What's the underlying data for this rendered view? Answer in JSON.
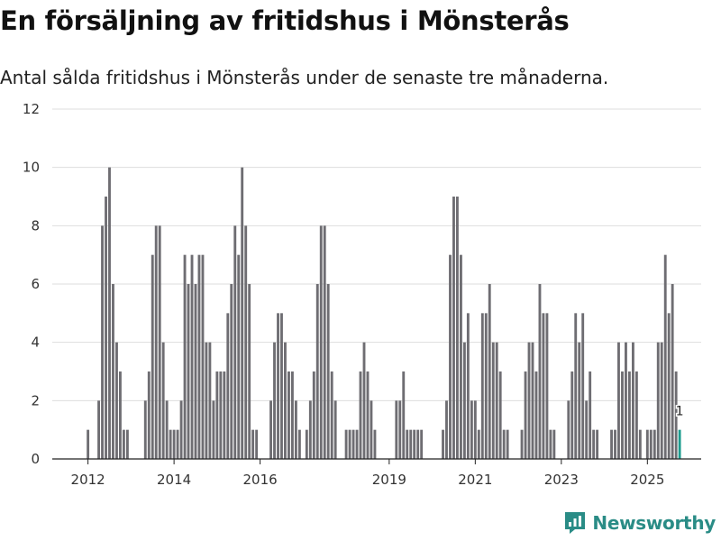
{
  "chart_data": {
    "type": "bar",
    "title": "En försäljning av fritidshus i Mönsterås",
    "subtitle": "Antal sålda fritidshus i Mönsterås under de senaste tre månaderna.",
    "xlabel": "",
    "ylabel": "",
    "ylim": [
      0,
      12
    ],
    "yticks": [
      0,
      2,
      4,
      6,
      8,
      10,
      12
    ],
    "xtick_labels": [
      "2012",
      "2014",
      "2016",
      "2019",
      "2021",
      "2023",
      "2025"
    ],
    "grid": true,
    "x_range": [
      2011.17,
      2026.25
    ],
    "bar_color": "#6e6d72",
    "highlight_color": "#1e9c8f",
    "highlight_label": "1",
    "series": [
      {
        "name": "Antal sålda fritidshus",
        "x": [
          2012.0,
          2012.083,
          2012.167,
          2012.25,
          2012.333,
          2012.417,
          2012.5,
          2012.583,
          2012.667,
          2012.75,
          2012.833,
          2012.917,
          2013.0,
          2013.083,
          2013.167,
          2013.25,
          2013.333,
          2013.417,
          2013.5,
          2013.583,
          2013.667,
          2013.75,
          2013.833,
          2013.917,
          2014.0,
          2014.083,
          2014.167,
          2014.25,
          2014.333,
          2014.417,
          2014.5,
          2014.583,
          2014.667,
          2014.75,
          2014.833,
          2014.917,
          2015.0,
          2015.083,
          2015.167,
          2015.25,
          2015.333,
          2015.417,
          2015.5,
          2015.583,
          2015.667,
          2015.75,
          2015.833,
          2015.917,
          2016.0,
          2016.083,
          2016.167,
          2016.25,
          2016.333,
          2016.417,
          2016.5,
          2016.583,
          2016.667,
          2016.75,
          2016.833,
          2016.917,
          2017.0,
          2017.083,
          2017.167,
          2017.25,
          2017.333,
          2017.417,
          2017.5,
          2017.583,
          2017.667,
          2017.75,
          2017.833,
          2017.917,
          2018.0,
          2018.083,
          2018.167,
          2018.25,
          2018.333,
          2018.417,
          2018.5,
          2018.583,
          2018.667,
          2018.75,
          2018.833,
          2018.917,
          2019.0,
          2019.083,
          2019.167,
          2019.25,
          2019.333,
          2019.417,
          2019.5,
          2019.583,
          2019.667,
          2019.75,
          2019.833,
          2019.917,
          2020.0,
          2020.083,
          2020.167,
          2020.25,
          2020.333,
          2020.417,
          2020.5,
          2020.583,
          2020.667,
          2020.75,
          2020.833,
          2020.917,
          2021.0,
          2021.083,
          2021.167,
          2021.25,
          2021.333,
          2021.417,
          2021.5,
          2021.583,
          2021.667,
          2021.75,
          2021.833,
          2021.917,
          2022.0,
          2022.083,
          2022.167,
          2022.25,
          2022.333,
          2022.417,
          2022.5,
          2022.583,
          2022.667,
          2022.75,
          2022.833,
          2022.917,
          2023.0,
          2023.083,
          2023.167,
          2023.25,
          2023.333,
          2023.417,
          2023.5,
          2023.583,
          2023.667,
          2023.75,
          2023.833,
          2023.917,
          2024.0,
          2024.083,
          2024.167,
          2024.25,
          2024.333,
          2024.417,
          2024.5,
          2024.583,
          2024.667,
          2024.75,
          2024.833,
          2024.917,
          2025.0,
          2025.083,
          2025.167,
          2025.25,
          2025.333,
          2025.417,
          2025.5,
          2025.583,
          2025.667,
          2025.75
        ],
        "values": [
          1,
          0,
          0,
          2,
          8,
          9,
          10,
          6,
          4,
          3,
          1,
          1,
          0,
          0,
          0,
          0,
          2,
          3,
          7,
          8,
          8,
          4,
          2,
          1,
          1,
          1,
          2,
          7,
          6,
          7,
          6,
          7,
          7,
          4,
          4,
          2,
          3,
          3,
          3,
          5,
          6,
          8,
          7,
          10,
          8,
          6,
          1,
          1,
          0,
          0,
          0,
          2,
          4,
          5,
          5,
          4,
          3,
          3,
          2,
          1,
          0,
          1,
          2,
          3,
          6,
          8,
          8,
          6,
          3,
          2,
          0,
          0,
          1,
          1,
          1,
          1,
          3,
          4,
          3,
          2,
          1,
          0,
          0,
          0,
          0,
          0,
          2,
          2,
          3,
          1,
          1,
          1,
          1,
          1,
          0,
          0,
          0,
          0,
          0,
          1,
          2,
          7,
          9,
          9,
          7,
          4,
          5,
          2,
          2,
          1,
          5,
          5,
          6,
          4,
          4,
          3,
          1,
          1,
          0,
          0,
          0,
          1,
          3,
          4,
          4,
          3,
          6,
          5,
          5,
          1,
          1,
          0,
          0,
          0,
          2,
          3,
          5,
          4,
          5,
          2,
          3,
          1,
          1,
          0,
          0,
          0,
          1,
          1,
          4,
          3,
          4,
          3,
          4,
          3,
          1,
          0,
          1,
          1,
          1,
          4,
          4,
          7,
          5,
          6,
          3,
          1
        ]
      }
    ]
  },
  "brand": {
    "name": "Newsworthy",
    "color": "#2a8c86"
  }
}
